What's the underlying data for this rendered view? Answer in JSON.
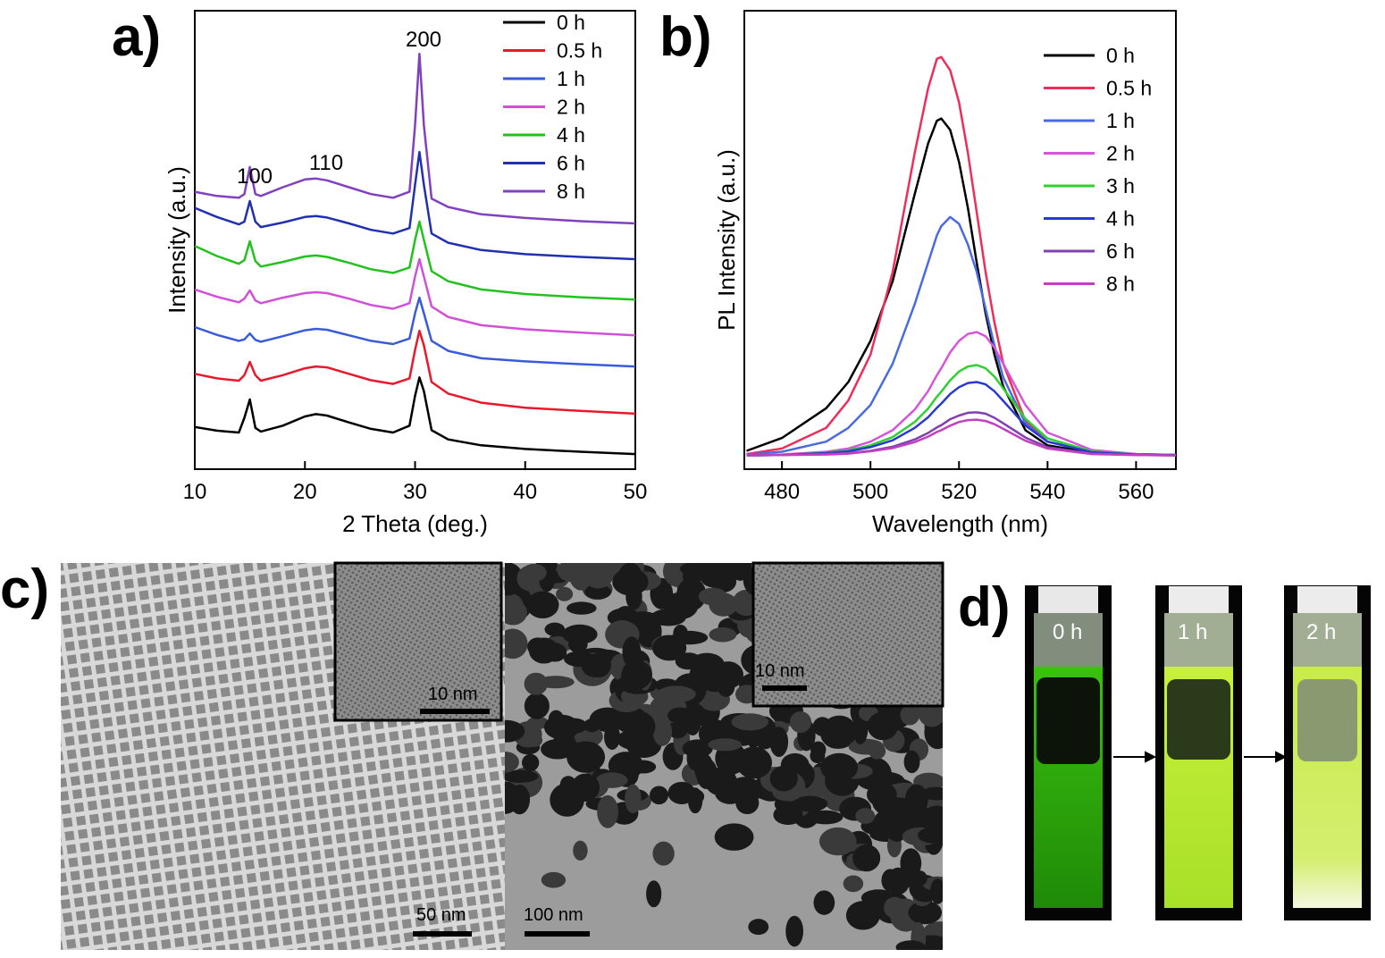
{
  "chart_data": [
    {
      "type": "line",
      "panel_label": "a)",
      "xlabel": "2 Theta (deg.)",
      "ylabel": "Intensity (a.u.)",
      "xlim": [
        10,
        50
      ],
      "ylim": [
        0,
        100
      ],
      "xticks": [
        10,
        20,
        30,
        40,
        50
      ],
      "legend": "upper right",
      "annotations": [
        "100",
        "110",
        "200"
      ],
      "x": [
        10,
        12,
        14,
        14.5,
        15,
        15.5,
        16,
        18,
        20,
        21,
        22,
        24,
        26,
        28,
        29.5,
        30,
        30.4,
        30.8,
        31.5,
        33,
        36,
        40,
        45,
        50
      ],
      "series": [
        {
          "name": "0 h",
          "color": "#000000",
          "values": [
            9.2,
            8.4,
            8.0,
            11.2,
            15.2,
            9.0,
            8.2,
            9.5,
            11.5,
            12.0,
            11.7,
            10.2,
            8.8,
            8.0,
            9.5,
            16,
            20.0,
            17,
            8.5,
            6.5,
            5.2,
            4.4,
            3.8,
            3.3
          ]
        },
        {
          "name": "0.5 h",
          "color": "#e8192c",
          "values": [
            20.8,
            19.8,
            19.3,
            20.5,
            23.4,
            20.5,
            19.3,
            20.5,
            22.0,
            22.4,
            22.2,
            20.8,
            19.4,
            18.6,
            19.8,
            26,
            30.2,
            27,
            19,
            16.5,
            14.5,
            13.4,
            12.7,
            12.1
          ]
        },
        {
          "name": "1 h",
          "color": "#3a5bd9",
          "values": [
            31,
            29.3,
            28.0,
            28.3,
            29.6,
            28.2,
            27.8,
            29.0,
            30.3,
            30.6,
            30.4,
            29.2,
            28.0,
            27.3,
            28.5,
            34,
            37.4,
            34,
            28,
            25.8,
            24.2,
            23.5,
            22.9,
            22.4
          ]
        },
        {
          "name": "2 h",
          "color": "#d050d8",
          "values": [
            39.2,
            37.6,
            36.4,
            37.2,
            39.0,
            36.8,
            36.2,
            37.4,
            38.4,
            38.6,
            38.4,
            37.2,
            35.8,
            35.0,
            36.2,
            42,
            45.8,
            42,
            35.5,
            33.2,
            31.4,
            30.5,
            29.8,
            29.2
          ]
        },
        {
          "name": "4 h",
          "color": "#22c21e",
          "values": [
            48.7,
            46.5,
            44.8,
            45.6,
            49.7,
            45.4,
            44.2,
            45.2,
            46.4,
            46.6,
            46.3,
            45.0,
            43.6,
            42.8,
            44,
            50,
            54,
            50,
            43.2,
            41,
            39.2,
            38.2,
            37.5,
            37
          ]
        },
        {
          "name": "6 h",
          "color": "#2030b0",
          "values": [
            57,
            55,
            53.4,
            54,
            58.5,
            54,
            52.8,
            53.8,
            55.0,
            55.2,
            54.9,
            53.6,
            52.2,
            51.4,
            52.6,
            62,
            69.2,
            62,
            51.4,
            49.4,
            47.8,
            46.9,
            46.3,
            45.8
          ]
        },
        {
          "name": "8 h",
          "color": "#8040c0",
          "values": [
            60.5,
            59.6,
            59.2,
            60,
            65.9,
            60,
            59.6,
            61.5,
            63.2,
            63.4,
            63.0,
            61.5,
            60,
            59.2,
            60.5,
            75,
            90.6,
            75,
            59,
            57.2,
            55.6,
            54.8,
            54.1,
            53.6
          ]
        }
      ]
    },
    {
      "type": "line",
      "panel_label": "b)",
      "xlabel": "Wavelength (nm)",
      "ylabel": "PL Intensity (a.u.)",
      "xlim": [
        471.5,
        569
      ],
      "ylim": [
        -3,
        97
      ],
      "xticks": [
        480,
        500,
        520,
        540,
        560
      ],
      "legend": "upper right",
      "x": [
        472,
        480,
        490,
        495,
        500,
        505,
        510,
        513,
        515,
        516,
        518,
        520,
        522,
        524,
        526,
        528,
        530,
        535,
        540,
        550,
        560,
        569
      ],
      "series": [
        {
          "name": "0 h",
          "color": "#000000",
          "values": [
            1,
            3.8,
            10.3,
            16,
            25,
            38,
            57,
            68,
            73,
            73.5,
            71,
            64,
            54,
            42,
            31,
            22,
            15,
            5.5,
            2.2,
            0.6,
            0.2,
            0.1
          ]
        },
        {
          "name": "0.5 h",
          "color": "#ec2f5a",
          "values": [
            0.3,
            1.5,
            6,
            12,
            22,
            40,
            66,
            80,
            86.5,
            86.9,
            84,
            77,
            66,
            53,
            40,
            29,
            20,
            7.5,
            3,
            0.8,
            0.3,
            0.1
          ]
        },
        {
          "name": "1 h",
          "color": "#4a6ae0",
          "values": [
            0.2,
            0.8,
            3,
            6,
            11,
            20,
            33,
            42,
            48,
            50,
            52,
            50.5,
            46,
            40,
            32,
            24,
            17,
            7,
            3,
            0.8,
            0.3,
            0.1
          ]
        },
        {
          "name": "2 h",
          "color": "#d455d8",
          "values": [
            0,
            0.2,
            0.8,
            1.5,
            3,
            5.5,
            10,
            14,
            17.5,
            19,
            22.5,
            25,
            26.5,
            26.9,
            26,
            23.5,
            20,
            11,
            5,
            1.2,
            0.3,
            0.1
          ]
        },
        {
          "name": "3 h",
          "color": "#30d030",
          "values": [
            0,
            0.1,
            0.6,
            1.1,
            2.2,
            4,
            7.3,
            10.2,
            12.8,
            13.9,
            16.4,
            18.3,
            19.4,
            19.7,
            19,
            17.2,
            14.6,
            8,
            3.7,
            0.9,
            0.2,
            0.1
          ]
        },
        {
          "name": "4 h",
          "color": "#2a3ad0",
          "values": [
            0,
            0.1,
            0.5,
            0.9,
            1.8,
            3.3,
            6,
            8.3,
            10.4,
            11.3,
            13.4,
            14.9,
            15.8,
            16,
            15.5,
            14,
            11.9,
            6.5,
            3,
            0.7,
            0.2,
            0.1
          ]
        },
        {
          "name": "6 h",
          "color": "#8040b0",
          "values": [
            0,
            0.1,
            0.3,
            0.5,
            1,
            1.9,
            3.5,
            4.9,
            6.1,
            6.6,
            7.9,
            8.7,
            9.3,
            9.4,
            9.1,
            8.2,
            7,
            3.9,
            1.8,
            0.4,
            0.1,
            0
          ]
        },
        {
          "name": "8 h",
          "color": "#c040c0",
          "values": [
            0,
            0.1,
            0.2,
            0.4,
            0.9,
            1.6,
            2.9,
            4.1,
            5.1,
            5.5,
            6.5,
            7.3,
            7.7,
            7.8,
            7.5,
            6.8,
            5.8,
            3.2,
            1.5,
            0.3,
            0.1,
            0
          ]
        }
      ]
    }
  ],
  "micrographs": {
    "panel_label": "c)",
    "scale_bars": [
      "50 nm",
      "100 nm",
      "10 nm",
      "10 nm"
    ]
  },
  "vials": {
    "panel_label": "d)",
    "labels": [
      "0 h",
      "1 h",
      "2 h"
    ]
  }
}
